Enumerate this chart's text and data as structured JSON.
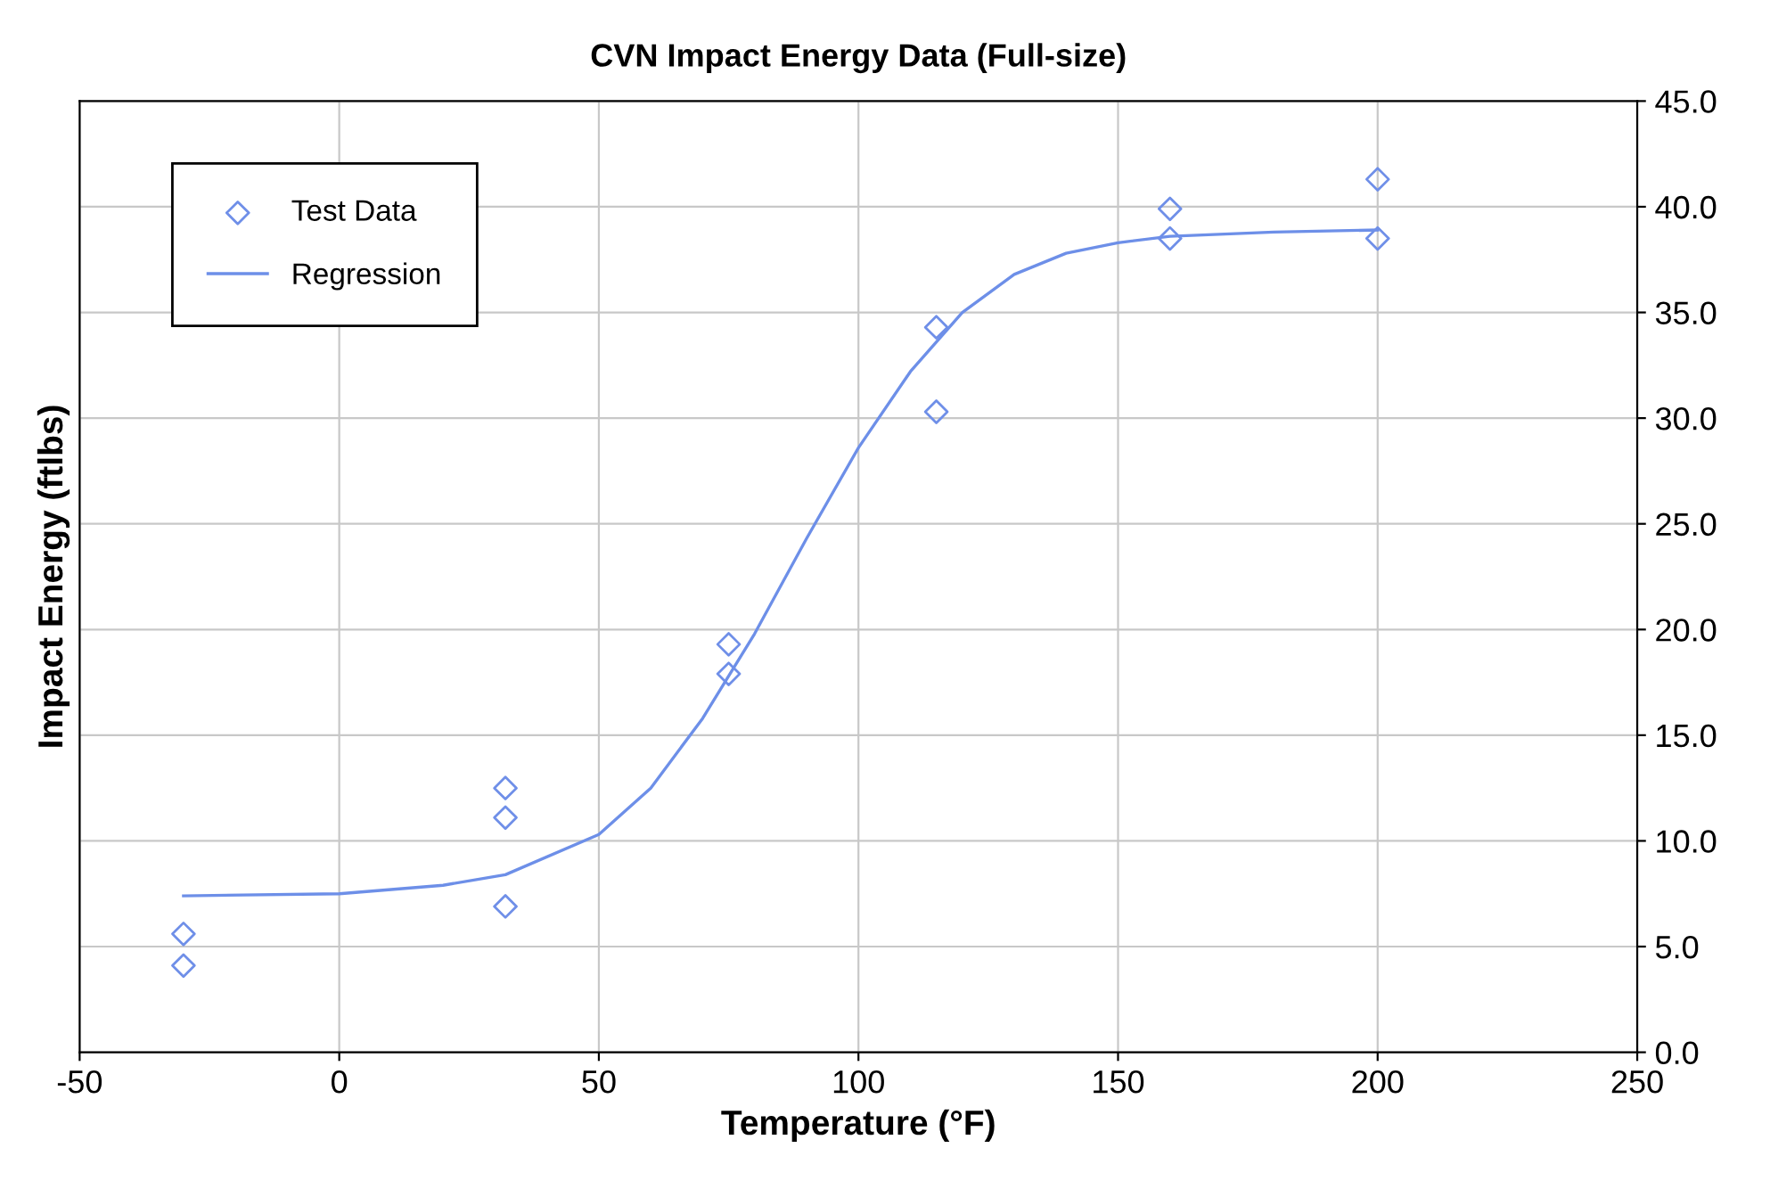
{
  "chart_data": {
    "type": "scatter",
    "title": "CVN Impact Energy Data (Full-size)",
    "xlabel": "Temperature (°F)",
    "ylabel": "Impact Energy (ftlbs)",
    "series": [
      {
        "name": "Test Data",
        "marker": "diamond",
        "color": "#6f8fe8",
        "x": [
          -30,
          -30,
          32,
          32,
          32,
          75,
          75,
          115,
          115,
          160,
          160,
          200,
          200
        ],
        "values": [
          5.6,
          4.1,
          12.5,
          11.1,
          6.9,
          19.3,
          17.9,
          34.3,
          30.3,
          39.9,
          38.5,
          41.3,
          38.5
        ]
      },
      {
        "name": "Regression",
        "type": "line",
        "marker": "none",
        "line_style": "solid",
        "color": "#6d8fe8",
        "x": [
          -30,
          0,
          20,
          32,
          50,
          60,
          70,
          80,
          90,
          100,
          110,
          120,
          130,
          140,
          150,
          160,
          180,
          200
        ],
        "values": [
          7.4,
          7.5,
          7.9,
          8.4,
          10.3,
          12.5,
          15.8,
          19.8,
          24.3,
          28.6,
          32.2,
          35.0,
          36.8,
          37.8,
          38.3,
          38.6,
          38.8,
          38.9
        ]
      }
    ],
    "xlim": [
      -50,
      250
    ],
    "xticks": [
      -50,
      0,
      50,
      100,
      150,
      200,
      250
    ],
    "ylim": [
      0,
      45
    ],
    "yticks": [
      {
        "value": 0,
        "label": "0.0"
      },
      {
        "value": 5,
        "label": "5.0"
      },
      {
        "value": 10,
        "label": "10.0"
      },
      {
        "value": 15,
        "label": "15.0"
      },
      {
        "value": 20,
        "label": "20.0"
      },
      {
        "value": 25,
        "label": "25.0"
      },
      {
        "value": 30,
        "label": "30.0"
      },
      {
        "value": 35,
        "label": "35.0"
      },
      {
        "value": 40,
        "label": "40.0"
      },
      {
        "value": 45,
        "label": "45.0"
      }
    ],
    "grid": true,
    "legend": "top left"
  }
}
